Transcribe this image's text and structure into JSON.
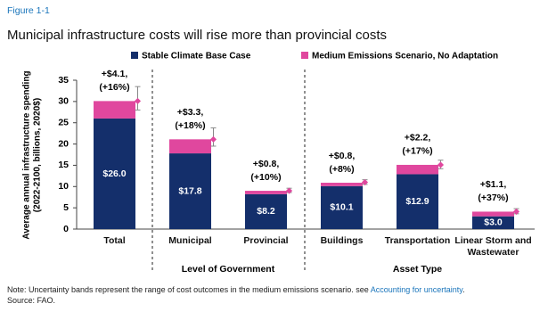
{
  "figure_label": "Figure 1-1",
  "chart_data": {
    "type": "bar",
    "stacked": true,
    "title": "Municipal infrastructure costs will rise more than provincial costs",
    "ylabel": [
      "Average annual infrastructure spending",
      "(2022-2100, billions, 2020$)"
    ],
    "categories": [
      "Total",
      "Municipal",
      "Provincial",
      "Buildings",
      "Transportation",
      "Linear Storm and Wastewater"
    ],
    "groups": [
      "Level of Government",
      "Asset Type"
    ],
    "series": [
      {
        "name": "Stable Climate Base Case",
        "color": "#142f6b",
        "values": [
          26.0,
          17.8,
          8.2,
          10.1,
          12.9,
          3.0
        ],
        "value_labels": [
          "$26.0",
          "$17.8",
          "$8.2",
          "$10.1",
          "$12.9",
          "$3.0"
        ]
      },
      {
        "name": "Medium Emissions Scenario, No Adaptation",
        "color": "#e0479e",
        "values": [
          4.1,
          3.3,
          0.8,
          0.8,
          2.2,
          1.1
        ],
        "value_labels": [
          [
            "+$4.1,",
            "(+16%)"
          ],
          [
            "+$3.3,",
            "(+18%)"
          ],
          [
            "+$0.8,",
            "(+10%)"
          ],
          [
            "+$0.8,",
            "(+8%)"
          ],
          [
            "+$2.2,",
            "(+17%)"
          ],
          [
            "+$1.1,",
            "(+37%)"
          ]
        ]
      }
    ],
    "uncertainty": {
      "color": "#e0479e",
      "values": [
        30.1,
        21.1,
        9.0,
        11.0,
        15.1,
        4.1
      ],
      "low": [
        28.0,
        19.5,
        8.6,
        10.5,
        14.2,
        3.6
      ],
      "high": [
        33.5,
        23.8,
        9.6,
        11.6,
        16.2,
        4.8
      ]
    },
    "ylim": [
      0,
      35
    ],
    "yticks": [
      0,
      5,
      10,
      15,
      20,
      25,
      30,
      35
    ],
    "grid": false,
    "legend": "top"
  },
  "note": {
    "prefix": "Note: Uncertainty bands represent the range of cost outcomes in the medium emissions scenario. see ",
    "link": "Accounting for uncertainty",
    "suffix": "."
  },
  "source": "Source: FAO."
}
